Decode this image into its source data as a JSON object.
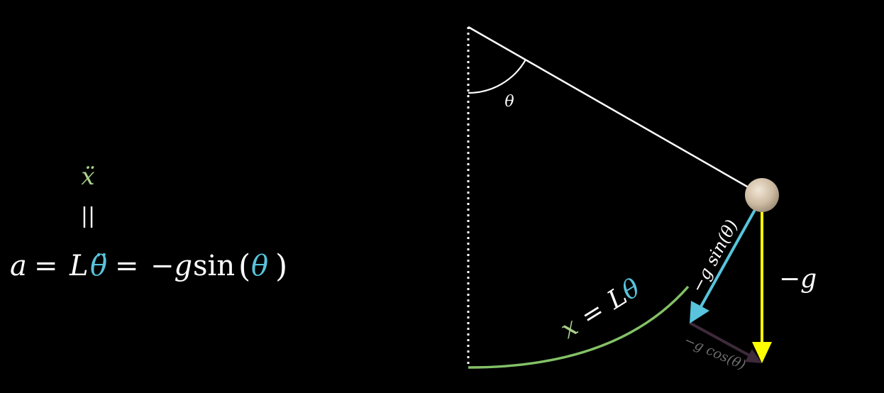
{
  "colors": {
    "background": "#000000",
    "text": "#ffffff",
    "accel_green": "#a8d08a",
    "theta_blue": "#58c4dd",
    "sin_arrow_blue": "#58c4dd",
    "gravity_yellow": "#ffff00",
    "cos_arrow_purple": "#3d2a3a",
    "cos_label_grey": "#6d6d6d",
    "arc_green": "#83c167",
    "bob_fill": "#d8c8b0"
  },
  "equation": {
    "xddot": "ẍ",
    "equals_vertical": "||",
    "lhs_a": "a",
    "eq1": "=",
    "L": "L",
    "thetaddot": "θ̈",
    "eq2": "=",
    "neg_g": "−g",
    "sin": "sin",
    "paren_open": "(",
    "theta": "θ",
    "paren_close": ")"
  },
  "diagram": {
    "angle_label": "θ",
    "arc_x": "x",
    "arc_eq": "=",
    "arc_L": "L",
    "arc_theta": "θ",
    "gravity_label": "−g",
    "sin_component_label": "−g sin(θ)",
    "cos_component_label": "−g cos(θ)"
  }
}
